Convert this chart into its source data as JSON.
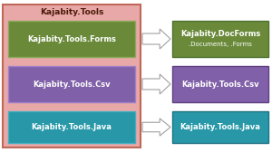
{
  "title": "Kajabity.Tools",
  "outer_box_color": "#e8a8a8",
  "outer_box_edge_color": "#c06858",
  "rows": [
    {
      "left_label": "Kajabity.Tools.Forms",
      "left_color": "#6a8a3a",
      "left_edge_color": "#8aaa5a",
      "right_label": "Kajabity.DocForms",
      "right_sublabel": ".Documents, .Forms",
      "right_color": "#6a8a3a",
      "right_edge_color": "#507030"
    },
    {
      "left_label": "Kajabity.Tools.Csv",
      "left_color": "#8060a8",
      "left_edge_color": "#a080c8",
      "right_label": "Kajabity.Tools.Csv",
      "right_sublabel": "",
      "right_color": "#8060a8",
      "right_edge_color": "#604080"
    },
    {
      "left_label": "Kajabity.Tools.Java",
      "left_color": "#2898a8",
      "left_edge_color": "#40b0c0",
      "right_label": "Kajabity.Tools.Java",
      "right_sublabel": "",
      "right_color": "#2898a8",
      "right_edge_color": "#207080"
    }
  ],
  "arrow_face_color": "#ffffff",
  "arrow_edge_color": "#a0a0a0",
  "title_fontsize": 6.5,
  "label_fontsize": 6.0,
  "sublabel_fontsize": 5.0,
  "fig_w": 3.0,
  "fig_h": 1.68,
  "dpi": 100
}
